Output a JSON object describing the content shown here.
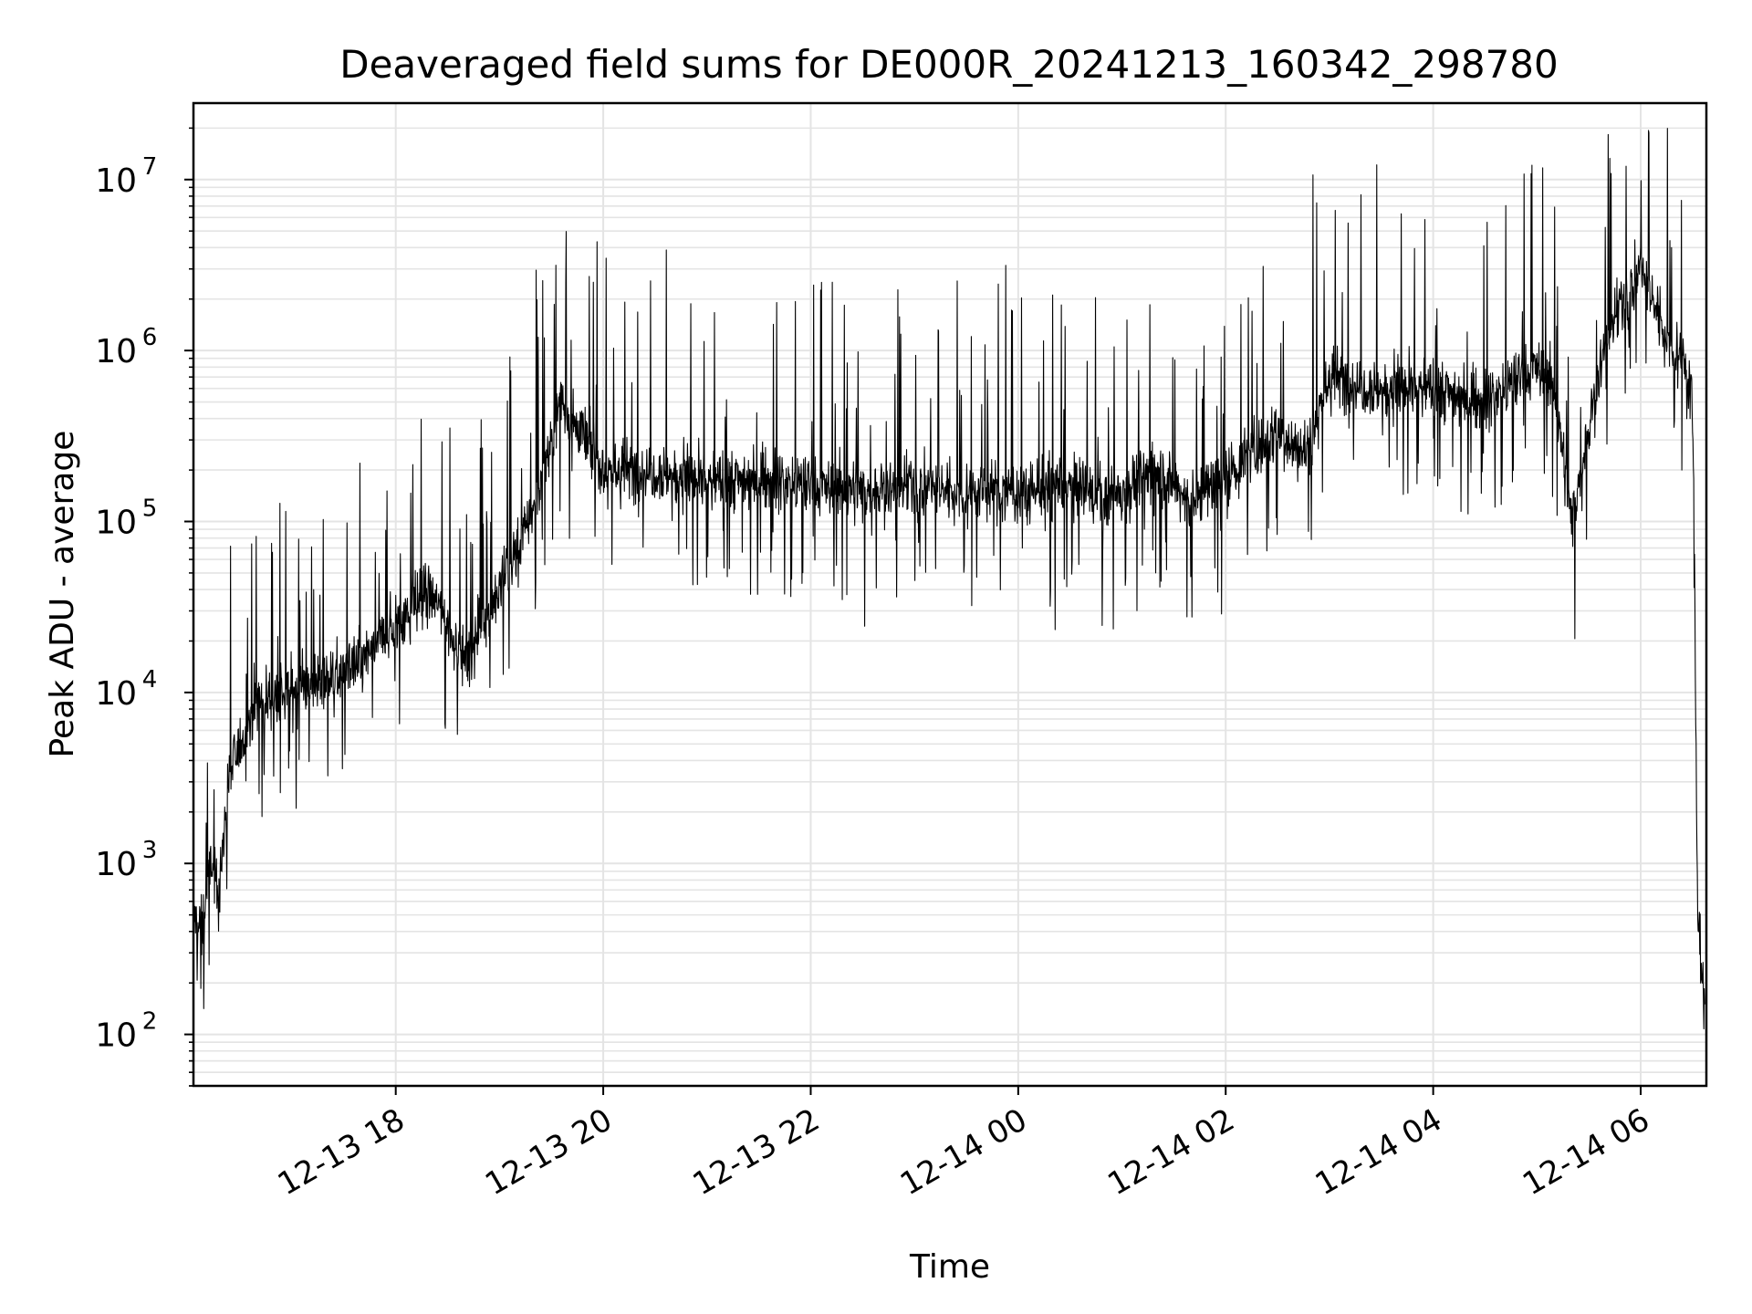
{
  "chart_data": {
    "type": "line",
    "title": "Deaveraged field sums for DE000R_20241213_160342_298780",
    "xlabel": "Time",
    "ylabel": "Peak ADU - average",
    "yscale": "log",
    "grid": true,
    "legend": "none",
    "line_color": "#000000",
    "xlim": [
      "2024-12-13 16:03",
      "2024-12-14 06:38"
    ],
    "ylim": [
      50,
      28000000
    ],
    "x_ticks": [
      {
        "value": "2024-12-13 18:00",
        "label": "12-13 18"
      },
      {
        "value": "2024-12-13 20:00",
        "label": "12-13 20"
      },
      {
        "value": "2024-12-13 22:00",
        "label": "12-13 22"
      },
      {
        "value": "2024-12-14 00:00",
        "label": "12-14 00"
      },
      {
        "value": "2024-12-14 02:00",
        "label": "12-14 02"
      },
      {
        "value": "2024-12-14 04:00",
        "label": "12-14 04"
      },
      {
        "value": "2024-12-14 06:00",
        "label": "12-14 06"
      }
    ],
    "y_ticks": [
      {
        "value": 100,
        "base": "10",
        "exp": "2"
      },
      {
        "value": 1000,
        "base": "10",
        "exp": "3"
      },
      {
        "value": 10000,
        "base": "10",
        "exp": "4"
      },
      {
        "value": 100000,
        "base": "10",
        "exp": "5"
      },
      {
        "value": 1000000,
        "base": "10",
        "exp": "6"
      },
      {
        "value": 10000000,
        "base": "10",
        "exp": "7"
      }
    ],
    "series": [
      {
        "x": [
          "2024-12-13 16:03",
          "2024-12-13 16:08",
          "2024-12-13 16:13",
          "2024-12-13 16:18",
          "2024-12-13 16:23",
          "2024-12-13 16:30",
          "2024-12-13 16:40",
          "2024-12-13 17:00",
          "2024-12-13 17:20",
          "2024-12-13 17:40",
          "2024-12-13 18:00",
          "2024-12-13 18:20",
          "2024-12-13 18:40",
          "2024-12-13 19:00",
          "2024-12-13 19:20",
          "2024-12-13 19:35",
          "2024-12-13 19:50",
          "2024-12-13 20:00",
          "2024-12-13 20:30",
          "2024-12-13 21:00",
          "2024-12-13 21:30",
          "2024-12-13 22:00",
          "2024-12-13 22:30",
          "2024-12-13 23:00",
          "2024-12-13 23:30",
          "2024-12-14 00:00",
          "2024-12-14 00:30",
          "2024-12-14 00:50",
          "2024-12-14 01:00",
          "2024-12-14 01:20",
          "2024-12-14 01:40",
          "2024-12-14 02:00",
          "2024-12-14 02:15",
          "2024-12-14 02:30",
          "2024-12-14 02:45",
          "2024-12-14 03:00",
          "2024-12-14 03:30",
          "2024-12-14 04:00",
          "2024-12-14 04:30",
          "2024-12-14 05:00",
          "2024-12-14 05:10",
          "2024-12-14 05:20",
          "2024-12-14 05:40",
          "2024-12-14 06:00",
          "2024-12-14 06:15",
          "2024-12-14 06:25",
          "2024-12-14 06:30",
          "2024-12-14 06:33",
          "2024-12-14 06:37"
        ],
        "y": [
          500,
          400,
          1000,
          700,
          3000,
          5000,
          9000,
          10000,
          12000,
          15000,
          25000,
          40000,
          15000,
          40000,
          120000,
          500000,
          300000,
          200000,
          200000,
          170000,
          180000,
          160000,
          150000,
          160000,
          150000,
          150000,
          160000,
          140000,
          150000,
          200000,
          130000,
          180000,
          250000,
          350000,
          250000,
          700000,
          600000,
          600000,
          500000,
          800000,
          600000,
          100000,
          1200000,
          3000000,
          1200000,
          900000,
          500000,
          500,
          150
        ]
      }
    ]
  }
}
